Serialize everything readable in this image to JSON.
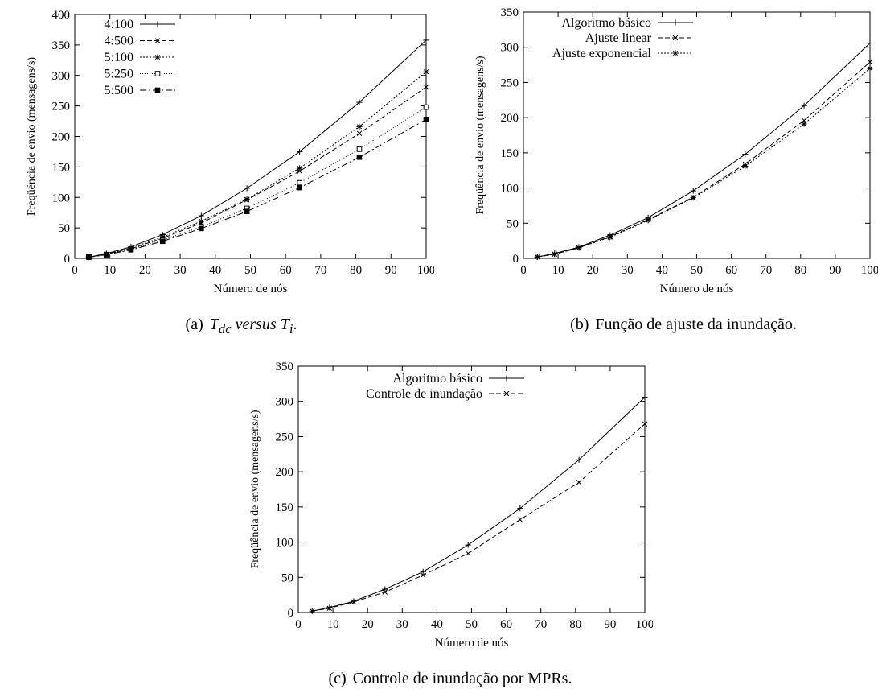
{
  "captions": {
    "a": {
      "tag": "(a)",
      "pre": "T",
      "pre_sub": "dc",
      "mid": "versus",
      "post": "T",
      "post_sub": "i",
      "end": "."
    },
    "b": {
      "tag": "(b)",
      "text": "Função de ajuste da inundação."
    },
    "c": {
      "tag": "(c)",
      "text": "Controle de inundação por MPRs."
    }
  },
  "chart_data": [
    {
      "type": "line",
      "id": "a",
      "xlabel": "Número de nós",
      "ylabel": "Freqüência de envio (mensagens/s)",
      "xlim": [
        0,
        100
      ],
      "ylim": [
        0,
        400
      ],
      "xticks": [
        0,
        10,
        20,
        30,
        40,
        50,
        60,
        70,
        80,
        90,
        100
      ],
      "yticks": [
        0,
        50,
        100,
        150,
        200,
        250,
        300,
        350,
        400
      ],
      "legend_position": "top-left",
      "x": [
        4,
        9,
        16,
        25,
        36,
        49,
        64,
        81,
        100
      ],
      "series": [
        {
          "name": "4:100",
          "marker": "plus",
          "dash": "none",
          "values": [
            2,
            8,
            19,
            39,
            70,
            115,
            175,
            256,
            358
          ]
        },
        {
          "name": "4:500",
          "marker": "cross",
          "dash": "6,3",
          "values": [
            2,
            7,
            16,
            33,
            58,
            96,
            143,
            205,
            281
          ]
        },
        {
          "name": "5:100",
          "marker": "star",
          "dash": "2,2",
          "values": [
            2,
            7,
            17,
            35,
            61,
            97,
            148,
            216,
            306
          ]
        },
        {
          "name": "5:250",
          "marker": "square-open",
          "dash": "1,2",
          "values": [
            2,
            6,
            15,
            30,
            52,
            82,
            124,
            179,
            248
          ]
        },
        {
          "name": "5:500",
          "marker": "square-filled",
          "dash": "8,3,2,3",
          "values": [
            2,
            6,
            14,
            28,
            49,
            77,
            116,
            166,
            228
          ]
        }
      ]
    },
    {
      "type": "line",
      "id": "b",
      "xlabel": "Número de nós",
      "ylabel": "Freqüência de envio (mensagens/s)",
      "xlim": [
        0,
        100
      ],
      "ylim": [
        0,
        350
      ],
      "xticks": [
        0,
        10,
        20,
        30,
        40,
        50,
        60,
        70,
        80,
        90,
        100
      ],
      "yticks": [
        0,
        50,
        100,
        150,
        200,
        250,
        300,
        350
      ],
      "legend_position": "top-left",
      "x": [
        4,
        9,
        16,
        25,
        36,
        49,
        64,
        81,
        100
      ],
      "series": [
        {
          "name": "Algoritmo básico",
          "marker": "plus",
          "dash": "none",
          "values": [
            2,
            7,
            16,
            33,
            58,
            96,
            148,
            217,
            306
          ]
        },
        {
          "name": "Ajuste linear",
          "marker": "cross",
          "dash": "6,3",
          "values": [
            2,
            6,
            15,
            31,
            55,
            87,
            134,
            196,
            279
          ]
        },
        {
          "name": "Ajuste exponencial",
          "marker": "star",
          "dash": "2,2",
          "values": [
            2,
            6,
            15,
            30,
            54,
            86,
            131,
            191,
            270
          ]
        }
      ]
    },
    {
      "type": "line",
      "id": "c",
      "xlabel": "Número de nós",
      "ylabel": "Freqüência de envio (mensagens/s)",
      "xlim": [
        0,
        100
      ],
      "ylim": [
        0,
        350
      ],
      "xticks": [
        0,
        10,
        20,
        30,
        40,
        50,
        60,
        70,
        80,
        90,
        100
      ],
      "yticks": [
        0,
        50,
        100,
        150,
        200,
        250,
        300,
        350
      ],
      "legend_position": "top-left",
      "x": [
        4,
        9,
        16,
        25,
        36,
        49,
        64,
        81,
        100
      ],
      "series": [
        {
          "name": "Algoritmo básico",
          "marker": "plus",
          "dash": "none",
          "values": [
            2,
            7,
            16,
            33,
            58,
            96,
            148,
            217,
            306
          ]
        },
        {
          "name": "Controle de inundação",
          "marker": "cross",
          "dash": "6,3",
          "values": [
            2,
            6,
            15,
            29,
            53,
            84,
            132,
            185,
            268
          ]
        }
      ]
    }
  ]
}
